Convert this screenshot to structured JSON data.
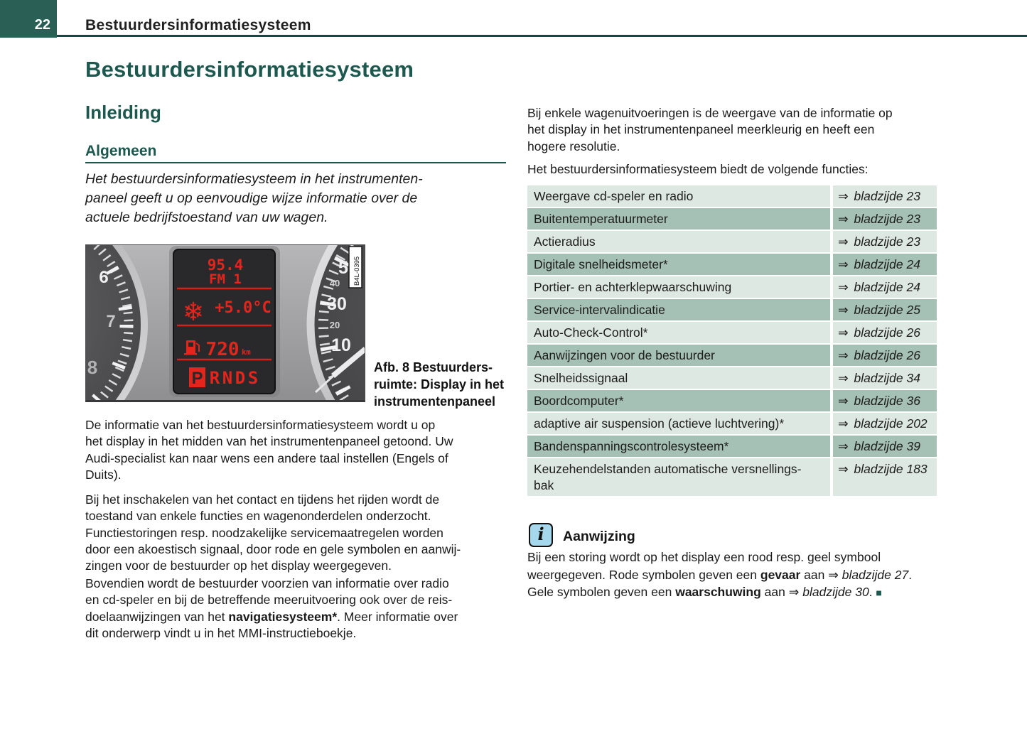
{
  "colors": {
    "heading_teal": "#1d584e",
    "header_box": "#2a5f56",
    "header_rule": "#16463f",
    "table_row_light": "#dde8e2",
    "table_row_dark": "#a5c0b4",
    "note_icon_blue": "#a5d8ec",
    "lcd_red": "#e3251c"
  },
  "header": {
    "page_number": "22",
    "title": "Bestuurdersinformatiesysteem"
  },
  "headings": {
    "main": "Bestuurdersinformatiesysteem",
    "section": "Inleiding",
    "subsection": "Algemeen"
  },
  "intro": {
    "lead": "Het bestuurdersinformatiesysteem in het instrumenten-\npaneel geeft u op eenvoudige wijze informatie over de\nactuele bedrijfstoestand van uw wagen."
  },
  "figure": {
    "caption": "Afb. 8   Bestuurders-\nruimte: Display in het\ninstrumentenpaneel",
    "photo_code": "B4L-0395",
    "cluster": {
      "radio_frequency": "95.4",
      "radio_station": "FM 1",
      "snowflake_icon": "❄",
      "temperature": "+5.0°C",
      "range_value": "720",
      "range_unit": "km",
      "gears": [
        "P",
        "R",
        "N",
        "D",
        "S"
      ],
      "selected_gear": "P",
      "tach_numbers": [
        "6",
        "7",
        "8"
      ],
      "speed_numbers": [
        "5",
        "40",
        "30",
        "20",
        "10"
      ]
    }
  },
  "left_column": {
    "p1": "De informatie van het bestuurdersinformatiesysteem wordt u op\nhet display in het midden van het instrumentenpaneel getoond. Uw\nAudi-specialist kan naar wens een andere taal instellen (Engels of\nDuits).",
    "p2": "Bij het inschakelen van het contact en tijdens het rijden wordt de\ntoestand van enkele functies en wagenonderdelen onderzocht.\nFunctiestoringen resp. noodzakelijke servicemaatregelen worden\ndoor een akoestisch signaal, door rode en gele symbolen en aanwij-\nzingen voor de bestuurder op het display weergegeven.",
    "p3_runs": [
      {
        "t": "Bovendien wordt de bestuurder voorzien van informatie over radio\nen cd-speler en bij de betreffende meeruitvoering ook over de reis-\ndoelaanwijzingen van het ",
        "s": "n"
      },
      {
        "t": "navigatiesysteem*",
        "s": "b"
      },
      {
        "t": ". Meer informatie over\ndit onderwerp vindt u in het MMI-instructieboekje.",
        "s": "n"
      }
    ]
  },
  "right_column": {
    "p1": "Bij enkele wagenuitvoeringen is de weergave van de informatie op\nhet display in het instrumentenpaneel meerkleurig en heeft een\nhogere resolutie.",
    "p2": "Het bestuurdersinformatiesysteem biedt de volgende functies:"
  },
  "table": {
    "arrow": "⇒",
    "rows": [
      {
        "label": "Weergave cd-speler en radio",
        "page": "bladzijde 23"
      },
      {
        "label": "Buitentemperatuurmeter",
        "page": "bladzijde 23"
      },
      {
        "label": "Actieradius",
        "page": "bladzijde 23"
      },
      {
        "label": "Digitale snelheidsmeter*",
        "page": "bladzijde 24"
      },
      {
        "label": "Portier- en achterklepwaarschuwing",
        "page": "bladzijde 24"
      },
      {
        "label": "Service-intervalindicatie",
        "page": "bladzijde 25"
      },
      {
        "label": "Auto-Check-Control*",
        "page": "bladzijde 26"
      },
      {
        "label": "Aanwijzingen voor de bestuurder",
        "page": "bladzijde 26"
      },
      {
        "label": "Snelheidssignaal",
        "page": "bladzijde 34"
      },
      {
        "label": "Boordcomputer*",
        "page": "bladzijde 36"
      },
      {
        "label": "adaptive air suspension (actieve luchtvering)*",
        "page": "bladzijde 202"
      },
      {
        "label": "Bandenspanningscontrolesysteem*",
        "page": "bladzijde 39"
      },
      {
        "label": "Keuzehendelstanden automatische versnellings-\nbak",
        "page": "bladzijde 183"
      }
    ]
  },
  "note": {
    "icon": "i",
    "title": "Aanwijzing",
    "runs": [
      {
        "t": "Bij een storing wordt op het display een rood resp. geel symbool\nweergegeven. Rode symbolen geven een ",
        "s": "n"
      },
      {
        "t": "gevaar",
        "s": "b"
      },
      {
        "t": " aan ",
        "s": "n"
      },
      {
        "t": "⇒ ",
        "s": "a"
      },
      {
        "t": "bladzijde 27",
        "s": "i"
      },
      {
        "t": ".\nGele symbolen geven een ",
        "s": "n"
      },
      {
        "t": "waarschuwing",
        "s": "b"
      },
      {
        "t": " aan ",
        "s": "n"
      },
      {
        "t": "⇒ ",
        "s": "a"
      },
      {
        "t": "bladzijde 30",
        "s": "i"
      },
      {
        "t": ". ",
        "s": "n"
      },
      {
        "t": "■",
        "s": "sq"
      }
    ]
  }
}
